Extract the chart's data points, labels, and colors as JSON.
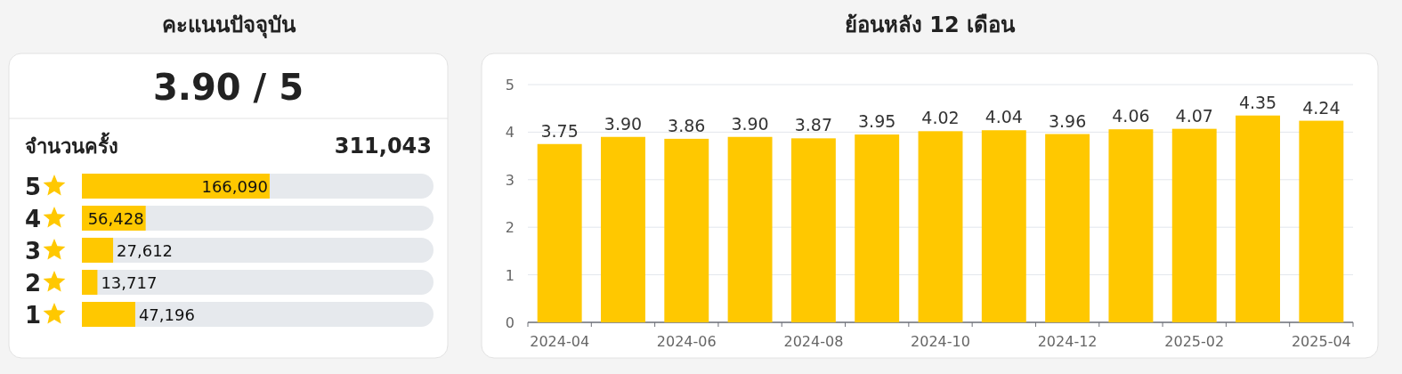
{
  "chart_data": [
    {
      "type": "bar",
      "title": "คะแนนปัจจุบัน",
      "orientation": "horizontal",
      "categories": [
        "5",
        "4",
        "3",
        "2",
        "1"
      ],
      "values": [
        166090,
        56428,
        27612,
        13717,
        47196
      ],
      "value_labels": [
        "166,090",
        "56,428",
        "27,612",
        "13,717",
        "47,196"
      ],
      "color": "#ffc800",
      "annotations": [
        "3.90 / 5",
        "จำนวนครั้ง",
        "311,043"
      ]
    },
    {
      "type": "bar",
      "title": "ย้อนหลัง 12 เดือน",
      "categories": [
        "2024-04",
        null,
        "2024-06",
        null,
        "2024-08",
        null,
        "2024-10",
        null,
        "2024-12",
        null,
        "2025-02",
        null,
        "2025-04"
      ],
      "values": [
        3.75,
        3.9,
        3.86,
        3.9,
        3.87,
        3.95,
        4.02,
        4.04,
        3.96,
        4.06,
        4.07,
        4.35,
        4.24
      ],
      "value_labels": [
        "3.75",
        "3.90",
        "3.86",
        "3.90",
        "3.87",
        "3.95",
        "4.02",
        "4.04",
        "3.96",
        "4.06",
        "4.07",
        "4.35",
        "4.24"
      ],
      "color": "#ffc800",
      "ylim": [
        0,
        5
      ],
      "yticks": [
        0,
        1,
        2,
        3,
        4,
        5
      ],
      "grid": "y"
    }
  ]
}
